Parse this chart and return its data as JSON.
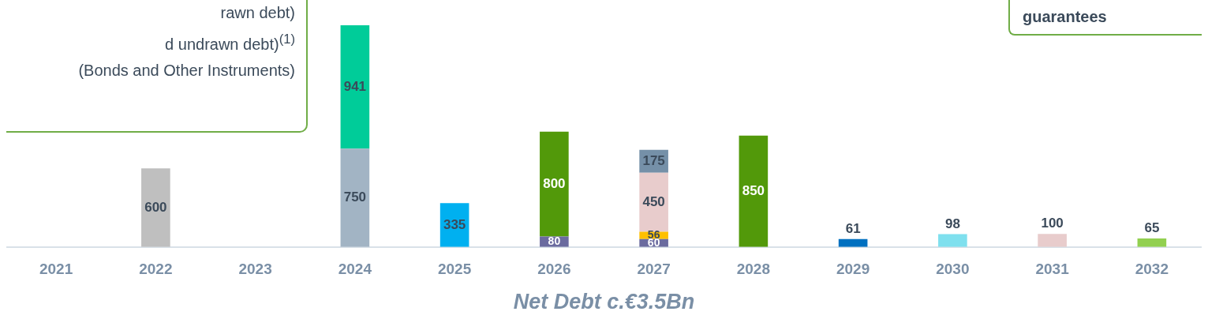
{
  "chart_data": {
    "type": "bar",
    "stacked": true,
    "data_labels": true,
    "xlabel": "Net Debt c.€3.5Bn",
    "categories": [
      "2021",
      "2022",
      "2023",
      "2024",
      "2025",
      "2026",
      "2027",
      "2028",
      "2029",
      "2030",
      "2031",
      "2032"
    ],
    "series": [
      {
        "color": "#bfbfbf",
        "values": [
          null,
          600,
          null,
          null,
          null,
          null,
          null,
          null,
          null,
          null,
          null,
          null
        ]
      },
      {
        "color": "#a2b4c4",
        "values": [
          null,
          null,
          null,
          750,
          null,
          null,
          null,
          null,
          null,
          null,
          null,
          null
        ]
      },
      {
        "color": "#00cc99",
        "values": [
          null,
          null,
          null,
          941,
          null,
          null,
          null,
          null,
          null,
          null,
          null,
          null
        ]
      },
      {
        "color": "#00b0f0",
        "values": [
          null,
          null,
          null,
          null,
          335,
          null,
          null,
          null,
          null,
          null,
          null,
          null
        ]
      },
      {
        "color": "#6b6b9f",
        "values": [
          null,
          null,
          null,
          null,
          null,
          80,
          60,
          null,
          null,
          null,
          null,
          null
        ]
      },
      {
        "color": "#52990a",
        "values": [
          null,
          null,
          null,
          null,
          null,
          800,
          null,
          850,
          null,
          null,
          null,
          null
        ]
      },
      {
        "color": "#ffc000",
        "values": [
          null,
          null,
          null,
          null,
          null,
          null,
          56,
          null,
          null,
          null,
          null,
          null
        ]
      },
      {
        "color": "#e8cccc",
        "values": [
          null,
          null,
          null,
          null,
          null,
          null,
          450,
          null,
          null,
          null,
          100,
          null
        ]
      },
      {
        "color": "#7590a8",
        "values": [
          null,
          null,
          null,
          null,
          null,
          null,
          175,
          null,
          null,
          null,
          null,
          null
        ]
      },
      {
        "color": "#0070c0",
        "values": [
          null,
          null,
          null,
          null,
          null,
          null,
          null,
          null,
          61,
          null,
          null,
          null
        ]
      },
      {
        "color": "#7fe0ee",
        "values": [
          null,
          null,
          null,
          null,
          null,
          null,
          null,
          null,
          null,
          98,
          null,
          null
        ]
      },
      {
        "color": "#92d050",
        "values": [
          null,
          null,
          null,
          null,
          null,
          null,
          null,
          null,
          null,
          null,
          null,
          65
        ]
      }
    ],
    "annotations": [
      "rawn debt)",
      "d undrawn debt)$^{(1)}$",
      "(Bonds and Other Instruments)",
      "guarantees"
    ]
  }
}
